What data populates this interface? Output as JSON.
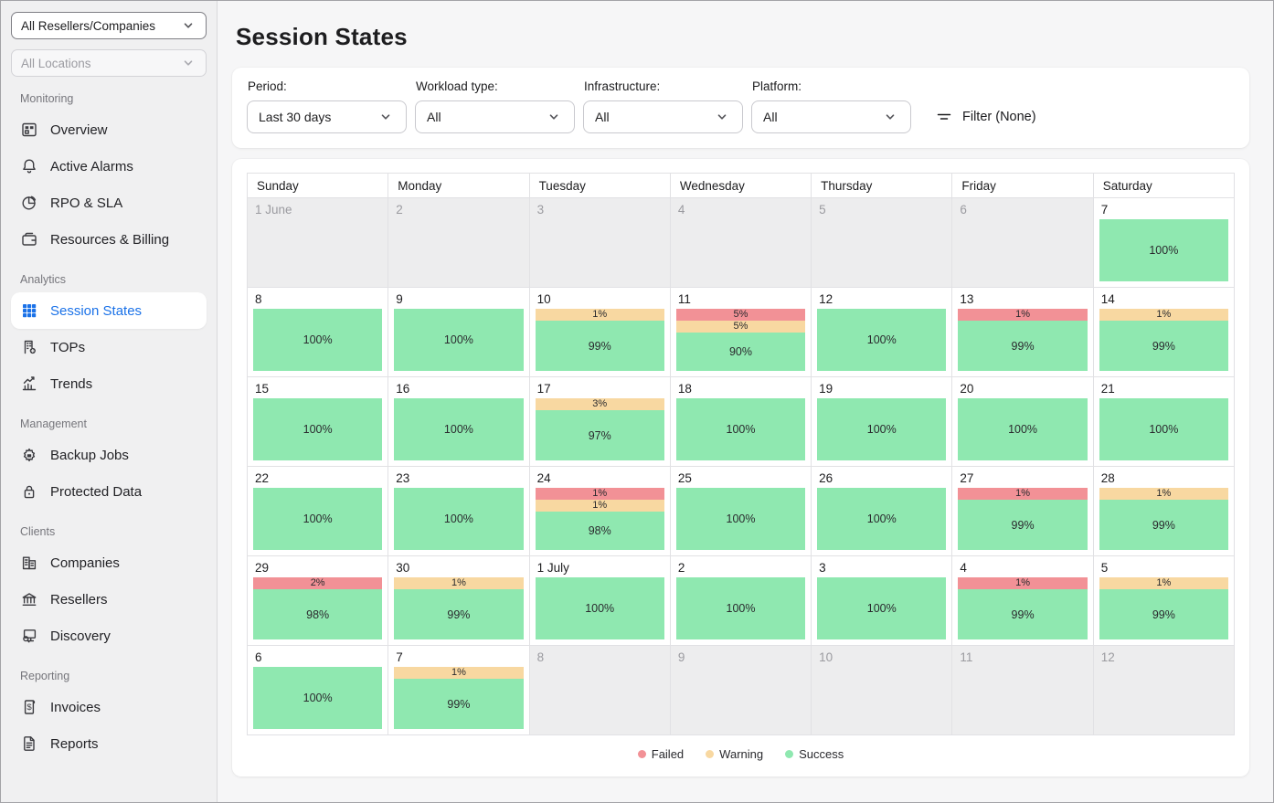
{
  "colors": {
    "accent": "#1b72e8",
    "failed": "#f29196",
    "warning": "#f8d8a1",
    "success": "#8fe8b0"
  },
  "sidebar": {
    "reseller_select": {
      "value": "All Resellers/Companies"
    },
    "location_select": {
      "value": "All Locations"
    },
    "sections": [
      {
        "title": "Monitoring",
        "items": [
          {
            "label": "Overview",
            "icon": "overview"
          },
          {
            "label": "Active Alarms",
            "icon": "alarms"
          },
          {
            "label": "RPO & SLA",
            "icon": "rpo-sla"
          },
          {
            "label": "Resources & Billing",
            "icon": "resources-billing"
          }
        ]
      },
      {
        "title": "Analytics",
        "items": [
          {
            "label": "Session States",
            "icon": "session-states",
            "active": true
          },
          {
            "label": "TOPs",
            "icon": "tops"
          },
          {
            "label": "Trends",
            "icon": "trends"
          }
        ]
      },
      {
        "title": "Management",
        "items": [
          {
            "label": "Backup Jobs",
            "icon": "backup-jobs"
          },
          {
            "label": "Protected Data",
            "icon": "protected-data"
          }
        ]
      },
      {
        "title": "Clients",
        "items": [
          {
            "label": "Companies",
            "icon": "companies"
          },
          {
            "label": "Resellers",
            "icon": "resellers"
          },
          {
            "label": "Discovery",
            "icon": "discovery"
          }
        ]
      },
      {
        "title": "Reporting",
        "items": [
          {
            "label": "Invoices",
            "icon": "invoices"
          },
          {
            "label": "Reports",
            "icon": "reports"
          }
        ]
      }
    ]
  },
  "page": {
    "title": "Session States"
  },
  "filters": {
    "dropdowns": [
      {
        "label": "Period:",
        "value": "Last 30 days"
      },
      {
        "label": "Workload type:",
        "value": "All"
      },
      {
        "label": "Infrastructure:",
        "value": "All"
      },
      {
        "label": "Platform:",
        "value": "All"
      }
    ],
    "filter_button_label": "Filter (None)"
  },
  "calendar": {
    "day_headers": [
      "Sunday",
      "Monday",
      "Tuesday",
      "Wednesday",
      "Thursday",
      "Friday",
      "Saturday"
    ],
    "weeks": [
      [
        {
          "date": "1 June",
          "disabled": true
        },
        {
          "date": "2",
          "disabled": true
        },
        {
          "date": "3",
          "disabled": true
        },
        {
          "date": "4",
          "disabled": true
        },
        {
          "date": "5",
          "disabled": true
        },
        {
          "date": "6",
          "disabled": true
        },
        {
          "date": "7",
          "segments": [
            {
              "type": "success",
              "label": "100%"
            }
          ]
        }
      ],
      [
        {
          "date": "8",
          "segments": [
            {
              "type": "success",
              "label": "100%"
            }
          ]
        },
        {
          "date": "9",
          "segments": [
            {
              "type": "success",
              "label": "100%"
            }
          ]
        },
        {
          "date": "10",
          "segments": [
            {
              "type": "warning",
              "label": "1%"
            },
            {
              "type": "success",
              "label": "99%"
            }
          ]
        },
        {
          "date": "11",
          "segments": [
            {
              "type": "failed",
              "label": "5%"
            },
            {
              "type": "warning",
              "label": "5%"
            },
            {
              "type": "success",
              "label": "90%"
            }
          ]
        },
        {
          "date": "12",
          "segments": [
            {
              "type": "success",
              "label": "100%"
            }
          ]
        },
        {
          "date": "13",
          "segments": [
            {
              "type": "failed",
              "label": "1%"
            },
            {
              "type": "success",
              "label": "99%"
            }
          ]
        },
        {
          "date": "14",
          "segments": [
            {
              "type": "warning",
              "label": "1%"
            },
            {
              "type": "success",
              "label": "99%"
            }
          ]
        }
      ],
      [
        {
          "date": "15",
          "segments": [
            {
              "type": "success",
              "label": "100%"
            }
          ]
        },
        {
          "date": "16",
          "segments": [
            {
              "type": "success",
              "label": "100%"
            }
          ]
        },
        {
          "date": "17",
          "segments": [
            {
              "type": "warning",
              "label": "3%"
            },
            {
              "type": "success",
              "label": "97%"
            }
          ]
        },
        {
          "date": "18",
          "segments": [
            {
              "type": "success",
              "label": "100%"
            }
          ]
        },
        {
          "date": "19",
          "segments": [
            {
              "type": "success",
              "label": "100%"
            }
          ]
        },
        {
          "date": "20",
          "segments": [
            {
              "type": "success",
              "label": "100%"
            }
          ]
        },
        {
          "date": "21",
          "segments": [
            {
              "type": "success",
              "label": "100%"
            }
          ]
        }
      ],
      [
        {
          "date": "22",
          "segments": [
            {
              "type": "success",
              "label": "100%"
            }
          ]
        },
        {
          "date": "23",
          "segments": [
            {
              "type": "success",
              "label": "100%"
            }
          ]
        },
        {
          "date": "24",
          "segments": [
            {
              "type": "failed",
              "label": "1%"
            },
            {
              "type": "warning",
              "label": "1%"
            },
            {
              "type": "success",
              "label": "98%"
            }
          ]
        },
        {
          "date": "25",
          "segments": [
            {
              "type": "success",
              "label": "100%"
            }
          ]
        },
        {
          "date": "26",
          "segments": [
            {
              "type": "success",
              "label": "100%"
            }
          ]
        },
        {
          "date": "27",
          "segments": [
            {
              "type": "failed",
              "label": "1%"
            },
            {
              "type": "success",
              "label": "99%"
            }
          ]
        },
        {
          "date": "28",
          "segments": [
            {
              "type": "warning",
              "label": "1%"
            },
            {
              "type": "success",
              "label": "99%"
            }
          ]
        }
      ],
      [
        {
          "date": "29",
          "segments": [
            {
              "type": "failed",
              "label": "2%"
            },
            {
              "type": "success",
              "label": "98%"
            }
          ]
        },
        {
          "date": "30",
          "segments": [
            {
              "type": "warning",
              "label": "1%"
            },
            {
              "type": "success",
              "label": "99%"
            }
          ]
        },
        {
          "date": "1 July",
          "segments": [
            {
              "type": "success",
              "label": "100%"
            }
          ]
        },
        {
          "date": "2",
          "segments": [
            {
              "type": "success",
              "label": "100%"
            }
          ]
        },
        {
          "date": "3",
          "segments": [
            {
              "type": "success",
              "label": "100%"
            }
          ]
        },
        {
          "date": "4",
          "segments": [
            {
              "type": "failed",
              "label": "1%"
            },
            {
              "type": "success",
              "label": "99%"
            }
          ]
        },
        {
          "date": "5",
          "segments": [
            {
              "type": "warning",
              "label": "1%"
            },
            {
              "type": "success",
              "label": "99%"
            }
          ]
        }
      ],
      [
        {
          "date": "6",
          "segments": [
            {
              "type": "success",
              "label": "100%"
            }
          ]
        },
        {
          "date": "7",
          "segments": [
            {
              "type": "warning",
              "label": "1%"
            },
            {
              "type": "success",
              "label": "99%"
            }
          ]
        },
        {
          "date": "8",
          "disabled": true
        },
        {
          "date": "9",
          "disabled": true
        },
        {
          "date": "10",
          "disabled": true
        },
        {
          "date": "11",
          "disabled": true
        },
        {
          "date": "12",
          "disabled": true
        }
      ]
    ]
  },
  "legend": [
    {
      "label": "Failed",
      "type": "failed"
    },
    {
      "label": "Warning",
      "type": "warning"
    },
    {
      "label": "Success",
      "type": "success"
    }
  ]
}
